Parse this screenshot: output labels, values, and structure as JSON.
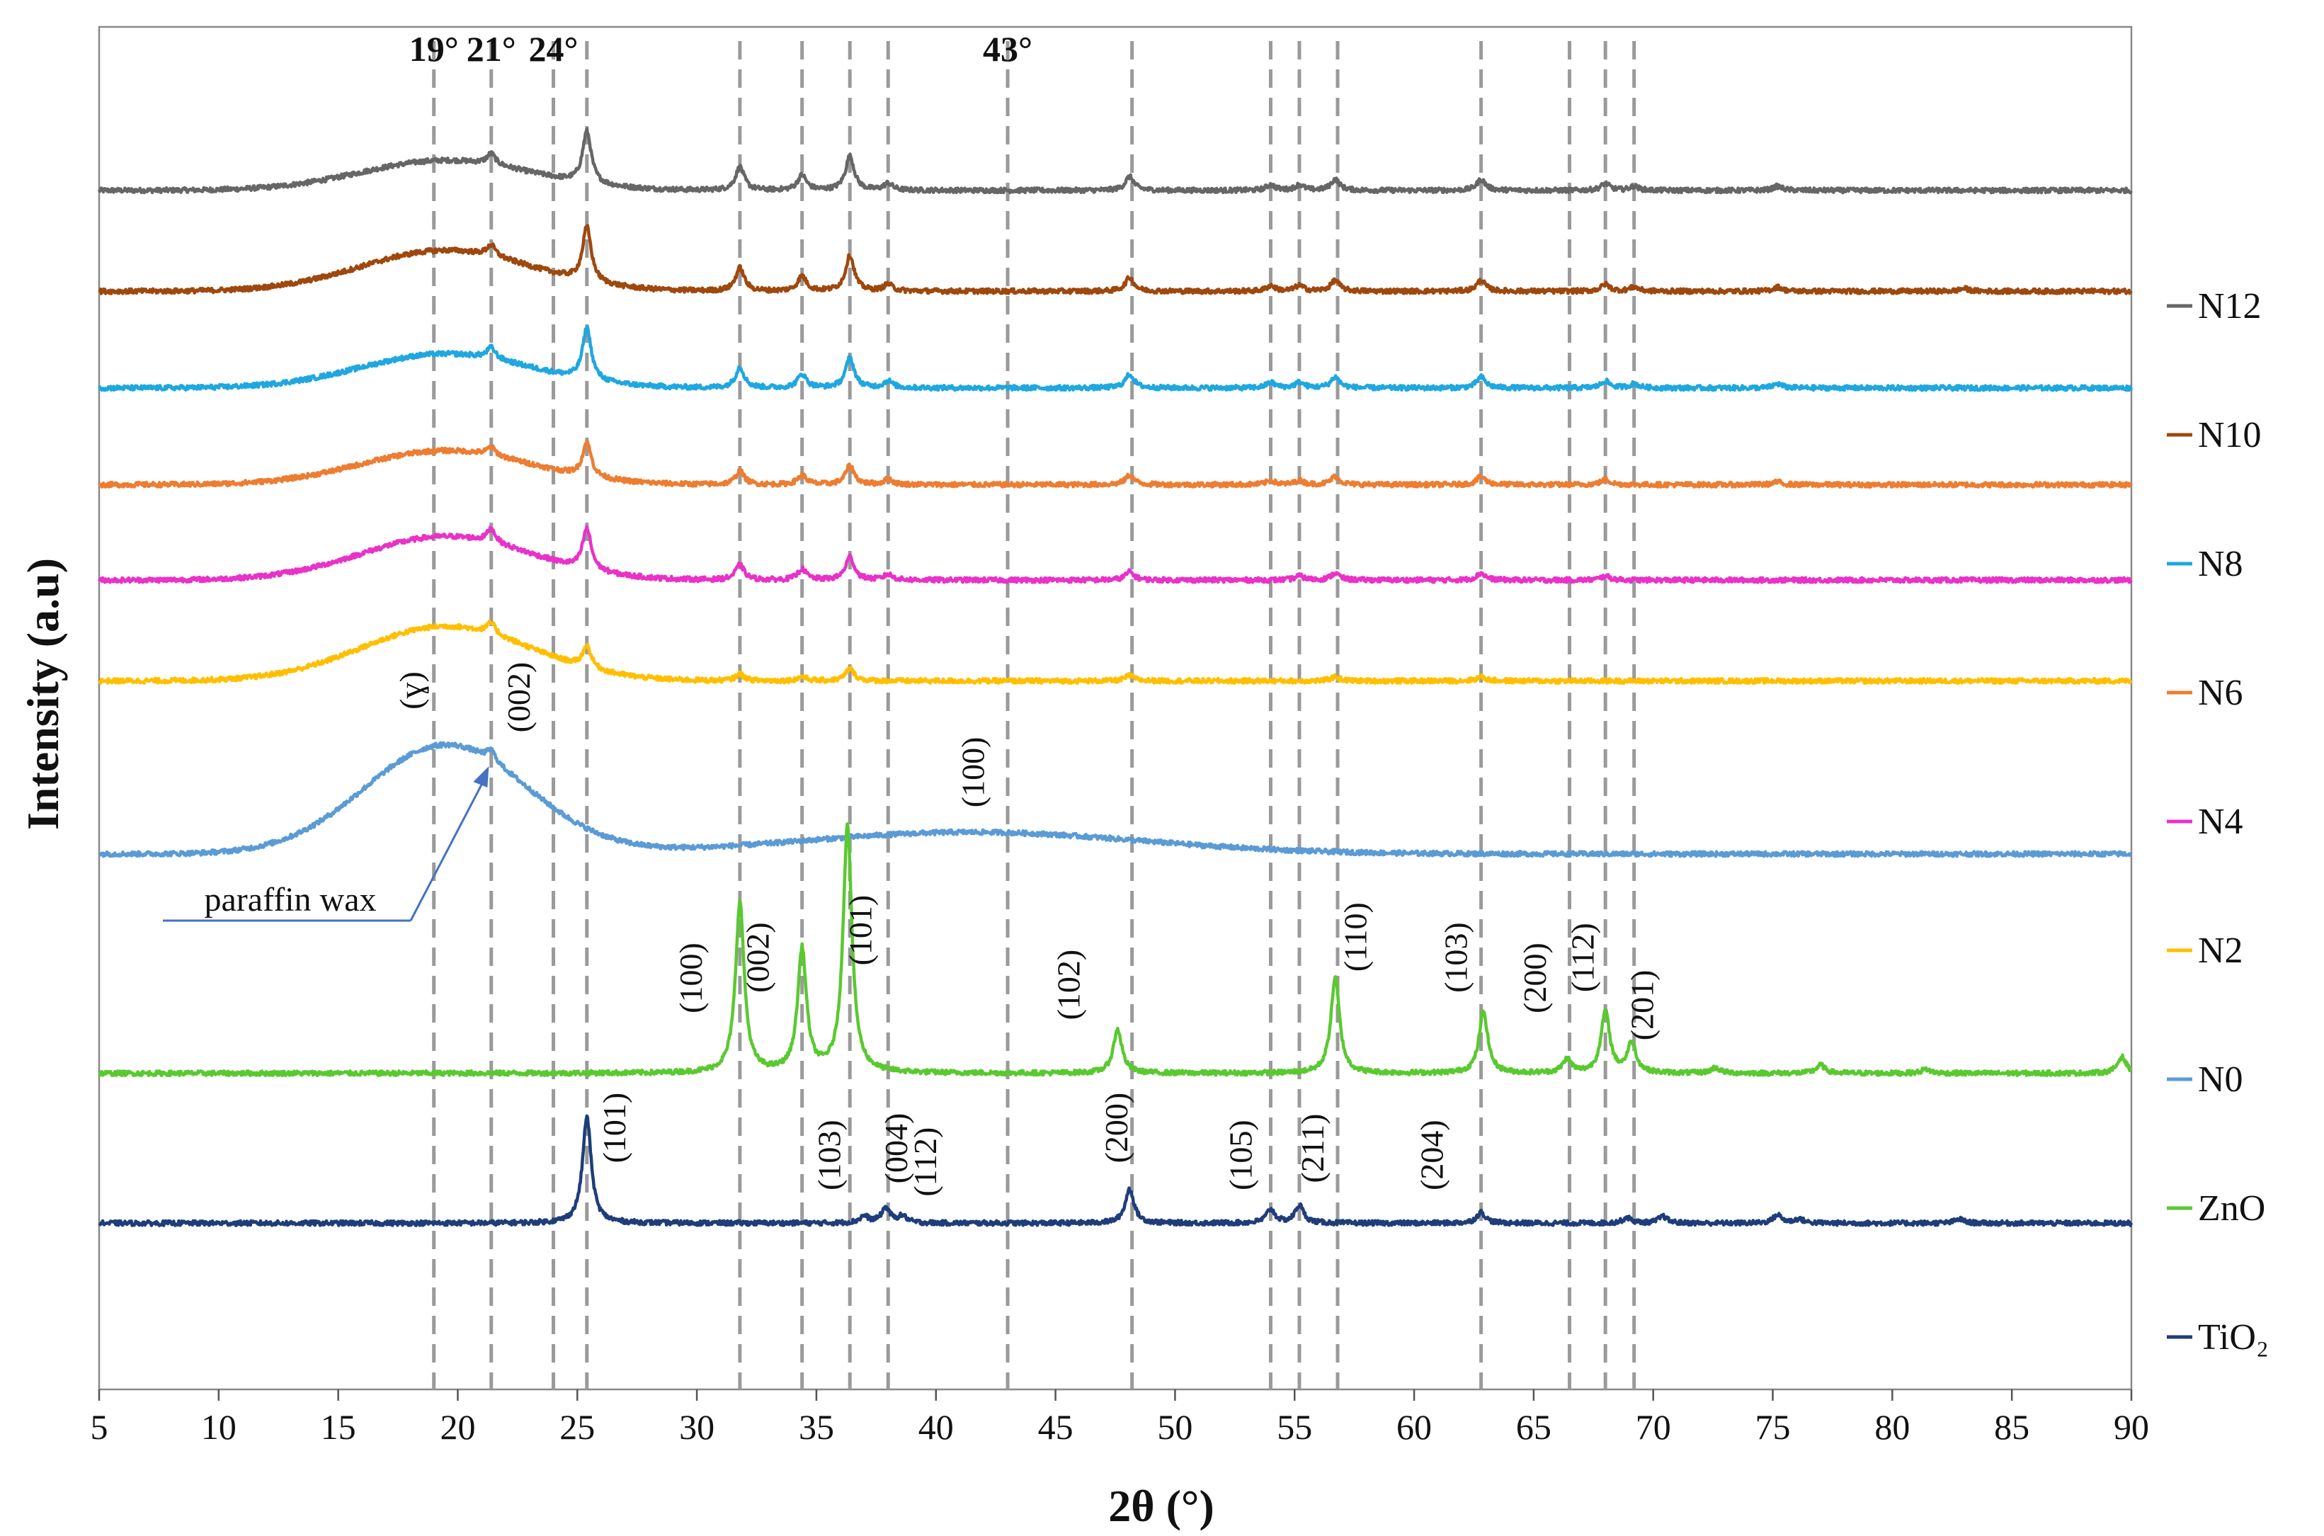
{
  "chart_data": {
    "type": "line",
    "title": "",
    "xlabel": "2θ (°)",
    "ylabel": "Intensity (a.u)",
    "xlim": [
      5,
      90
    ],
    "x_ticks": [
      5,
      10,
      15,
      20,
      25,
      30,
      35,
      40,
      45,
      50,
      55,
      60,
      65,
      70,
      75,
      80,
      85,
      90
    ],
    "y_ticks_shown": false,
    "legend_position": "right",
    "reference_lines_deg": [
      19,
      21.4,
      24,
      25.4,
      31.8,
      34.4,
      36.4,
      38.0,
      43,
      48.2,
      54.0,
      55.2,
      56.8,
      62.8,
      66.5,
      68.0,
      69.2
    ],
    "reference_labels": [
      {
        "text": "19°",
        "x": 19
      },
      {
        "text": "21°",
        "x": 21.4
      },
      {
        "text": "24°",
        "x": 24
      },
      {
        "text": "43°",
        "x": 43
      }
    ],
    "series": [
      {
        "name": "N12",
        "color": "#666666",
        "baseline": 0.88,
        "amorphous": [
          {
            "x": 19.5,
            "h": 0.022,
            "w": 5
          }
        ],
        "peaks": [
          {
            "x": 21.4,
            "h": 0.008
          },
          {
            "x": 25.4,
            "h": 0.038
          },
          {
            "x": 31.8,
            "h": 0.017
          },
          {
            "x": 34.4,
            "h": 0.011
          },
          {
            "x": 36.4,
            "h": 0.025
          },
          {
            "x": 38.0,
            "h": 0.005
          },
          {
            "x": 48.1,
            "h": 0.01
          },
          {
            "x": 54.0,
            "h": 0.004
          },
          {
            "x": 55.2,
            "h": 0.004
          },
          {
            "x": 56.7,
            "h": 0.008
          },
          {
            "x": 62.8,
            "h": 0.008
          },
          {
            "x": 68.0,
            "h": 0.005
          },
          {
            "x": 69.2,
            "h": 0.003
          },
          {
            "x": 75.2,
            "h": 0.003
          }
        ]
      },
      {
        "name": "N10",
        "color": "#9e480e",
        "baseline": 0.806,
        "amorphous": [
          {
            "x": 19.5,
            "h": 0.03,
            "w": 5
          }
        ],
        "peaks": [
          {
            "x": 21.4,
            "h": 0.008
          },
          {
            "x": 25.4,
            "h": 0.04
          },
          {
            "x": 31.8,
            "h": 0.017
          },
          {
            "x": 34.4,
            "h": 0.011
          },
          {
            "x": 36.4,
            "h": 0.026
          },
          {
            "x": 38.0,
            "h": 0.005
          },
          {
            "x": 48.1,
            "h": 0.01
          },
          {
            "x": 54.0,
            "h": 0.004
          },
          {
            "x": 55.2,
            "h": 0.004
          },
          {
            "x": 56.7,
            "h": 0.008
          },
          {
            "x": 62.8,
            "h": 0.008
          },
          {
            "x": 68.0,
            "h": 0.005
          },
          {
            "x": 69.2,
            "h": 0.003
          },
          {
            "x": 75.2,
            "h": 0.003
          },
          {
            "x": 83,
            "h": 0.002
          }
        ]
      },
      {
        "name": "N8",
        "color": "#1fa7e0",
        "baseline": 0.735,
        "amorphous": [
          {
            "x": 19.5,
            "h": 0.025,
            "w": 5
          }
        ],
        "peaks": [
          {
            "x": 21.4,
            "h": 0.008
          },
          {
            "x": 25.4,
            "h": 0.038
          },
          {
            "x": 31.8,
            "h": 0.015
          },
          {
            "x": 34.4,
            "h": 0.01
          },
          {
            "x": 36.4,
            "h": 0.022
          },
          {
            "x": 38.0,
            "h": 0.005
          },
          {
            "x": 48.1,
            "h": 0.01
          },
          {
            "x": 54.0,
            "h": 0.004
          },
          {
            "x": 55.2,
            "h": 0.004
          },
          {
            "x": 56.7,
            "h": 0.008
          },
          {
            "x": 62.8,
            "h": 0.008
          },
          {
            "x": 68.0,
            "h": 0.005
          },
          {
            "x": 69.2,
            "h": 0.003
          },
          {
            "x": 75.2,
            "h": 0.003
          }
        ]
      },
      {
        "name": "N6",
        "color": "#ed7d31",
        "baseline": 0.664,
        "amorphous": [
          {
            "x": 19.5,
            "h": 0.025,
            "w": 5
          }
        ],
        "peaks": [
          {
            "x": 21.4,
            "h": 0.006
          },
          {
            "x": 25.4,
            "h": 0.025
          },
          {
            "x": 31.8,
            "h": 0.01
          },
          {
            "x": 34.4,
            "h": 0.007
          },
          {
            "x": 36.4,
            "h": 0.014
          },
          {
            "x": 38.0,
            "h": 0.004
          },
          {
            "x": 48.1,
            "h": 0.007
          },
          {
            "x": 54.0,
            "h": 0.003
          },
          {
            "x": 55.2,
            "h": 0.003
          },
          {
            "x": 56.7,
            "h": 0.006
          },
          {
            "x": 62.8,
            "h": 0.006
          },
          {
            "x": 68.0,
            "h": 0.004
          },
          {
            "x": 75.2,
            "h": 0.002
          }
        ]
      },
      {
        "name": "N4",
        "color": "#e832c8",
        "baseline": 0.594,
        "amorphous": [
          {
            "x": 19.5,
            "h": 0.032,
            "w": 5
          }
        ],
        "peaks": [
          {
            "x": 21.4,
            "h": 0.01
          },
          {
            "x": 25.4,
            "h": 0.03
          },
          {
            "x": 31.8,
            "h": 0.011
          },
          {
            "x": 34.4,
            "h": 0.008
          },
          {
            "x": 36.4,
            "h": 0.017
          },
          {
            "x": 38.0,
            "h": 0.004
          },
          {
            "x": 48.1,
            "h": 0.006
          },
          {
            "x": 55.2,
            "h": 0.003
          },
          {
            "x": 56.7,
            "h": 0.005
          },
          {
            "x": 62.8,
            "h": 0.005
          },
          {
            "x": 68.0,
            "h": 0.003
          }
        ]
      },
      {
        "name": "N2",
        "color": "#ffbf00",
        "baseline": 0.52,
        "amorphous": [
          {
            "x": 19.5,
            "h": 0.04,
            "w": 5
          }
        ],
        "peaks": [
          {
            "x": 21.4,
            "h": 0.008
          },
          {
            "x": 25.4,
            "h": 0.016
          },
          {
            "x": 31.8,
            "h": 0.005
          },
          {
            "x": 34.4,
            "h": 0.003
          },
          {
            "x": 36.4,
            "h": 0.009
          },
          {
            "x": 48.1,
            "h": 0.004
          },
          {
            "x": 56.7,
            "h": 0.003
          },
          {
            "x": 62.8,
            "h": 0.003
          }
        ]
      },
      {
        "name": "N0",
        "color": "#5b9bd5",
        "baseline": 0.393,
        "amorphous": [
          {
            "x": 19.5,
            "h": 0.08,
            "w": 4.8
          },
          {
            "x": 41.5,
            "h": 0.016,
            "w": 10
          }
        ],
        "peaks": [
          {
            "x": 21.4,
            "h": 0.008
          }
        ]
      },
      {
        "name": "ZnO",
        "color": "#5ac930",
        "baseline": 0.232,
        "amorphous": [],
        "peaks": [
          {
            "x": 31.8,
            "h": 0.125
          },
          {
            "x": 34.4,
            "h": 0.09
          },
          {
            "x": 36.3,
            "h": 0.182
          },
          {
            "x": 47.6,
            "h": 0.032
          },
          {
            "x": 56.7,
            "h": 0.07
          },
          {
            "x": 62.9,
            "h": 0.045
          },
          {
            "x": 66.4,
            "h": 0.01
          },
          {
            "x": 68.0,
            "h": 0.045
          },
          {
            "x": 69.1,
            "h": 0.022
          },
          {
            "x": 72.6,
            "h": 0.004
          },
          {
            "x": 77.0,
            "h": 0.006
          },
          {
            "x": 81.4,
            "h": 0.003
          },
          {
            "x": 89.6,
            "h": 0.012
          }
        ]
      },
      {
        "name": "TiO2",
        "color": "#1f3d7a",
        "baseline": 0.122,
        "amorphous": [],
        "peaks": [
          {
            "x": 25.4,
            "h": 0.078
          },
          {
            "x": 37.0,
            "h": 0.005
          },
          {
            "x": 37.9,
            "h": 0.011
          },
          {
            "x": 38.6,
            "h": 0.005
          },
          {
            "x": 48.1,
            "h": 0.025
          },
          {
            "x": 54.0,
            "h": 0.01
          },
          {
            "x": 55.2,
            "h": 0.013
          },
          {
            "x": 62.8,
            "h": 0.008
          },
          {
            "x": 68.9,
            "h": 0.004
          },
          {
            "x": 70.4,
            "h": 0.005
          },
          {
            "x": 75.2,
            "h": 0.006
          },
          {
            "x": 76.1,
            "h": 0.003
          },
          {
            "x": 82.8,
            "h": 0.003
          }
        ]
      }
    ],
    "legend": [
      {
        "series": "N12",
        "text": "N12"
      },
      {
        "series": "N10",
        "text": "N10"
      },
      {
        "series": "N8",
        "text": "N8"
      },
      {
        "series": "N6",
        "text": "N6"
      },
      {
        "series": "N4",
        "text": "N4"
      },
      {
        "series": "N2",
        "text": "N2"
      },
      {
        "series": "N0",
        "text": "N0"
      },
      {
        "series": "ZnO",
        "text": "ZnO"
      },
      {
        "series": "TiO2",
        "text": "TiO₂"
      }
    ],
    "hkl_labels": [
      {
        "text": "(ɣ)",
        "x": 18.5,
        "series": "N0",
        "offset": 0.12
      },
      {
        "text": "(002)",
        "x": 23.0,
        "series": "N0",
        "offset": 0.115
      },
      {
        "text": "(100)",
        "x": 42.0,
        "series": "N0",
        "offset": 0.06
      },
      {
        "text": "(100)",
        "x": 30.2,
        "series": "ZnO",
        "offset": 0.07
      },
      {
        "text": "(002)",
        "x": 33.0,
        "series": "ZnO",
        "offset": 0.085
      },
      {
        "text": "(101)",
        "x": 37.3,
        "series": "ZnO",
        "offset": 0.105
      },
      {
        "text": "(102)",
        "x": 46.0,
        "series": "ZnO",
        "offset": 0.065
      },
      {
        "text": "(110)",
        "x": 58.0,
        "series": "ZnO",
        "offset": 0.1
      },
      {
        "text": "(103)",
        "x": 62.2,
        "series": "ZnO",
        "offset": 0.085
      },
      {
        "text": "(200)",
        "x": 65.5,
        "series": "ZnO",
        "offset": 0.07
      },
      {
        "text": "(112)",
        "x": 67.5,
        "series": "ZnO",
        "offset": 0.085
      },
      {
        "text": "(201)",
        "x": 70.0,
        "series": "ZnO",
        "offset": 0.05
      },
      {
        "text": "(101)",
        "x": 27.0,
        "series": "TiO2",
        "offset": 0.07
      },
      {
        "text": "(103)",
        "x": 36.0,
        "series": "TiO2",
        "offset": 0.05
      },
      {
        "text": "(004)",
        "x": 38.8,
        "series": "TiO2",
        "offset": 0.055
      },
      {
        "text": "(112)",
        "x": 40.0,
        "series": "TiO2",
        "offset": 0.045
      },
      {
        "text": "(200)",
        "x": 48.0,
        "series": "TiO2",
        "offset": 0.07
      },
      {
        "text": "(105)",
        "x": 53.2,
        "series": "TiO2",
        "offset": 0.05
      },
      {
        "text": "(211)",
        "x": 56.2,
        "series": "TiO2",
        "offset": 0.055
      },
      {
        "text": "(204)",
        "x": 61.2,
        "series": "TiO2",
        "offset": 0.05
      }
    ],
    "annotation": {
      "text": "paraffin wax",
      "x": 21.3,
      "series": "N0"
    }
  }
}
